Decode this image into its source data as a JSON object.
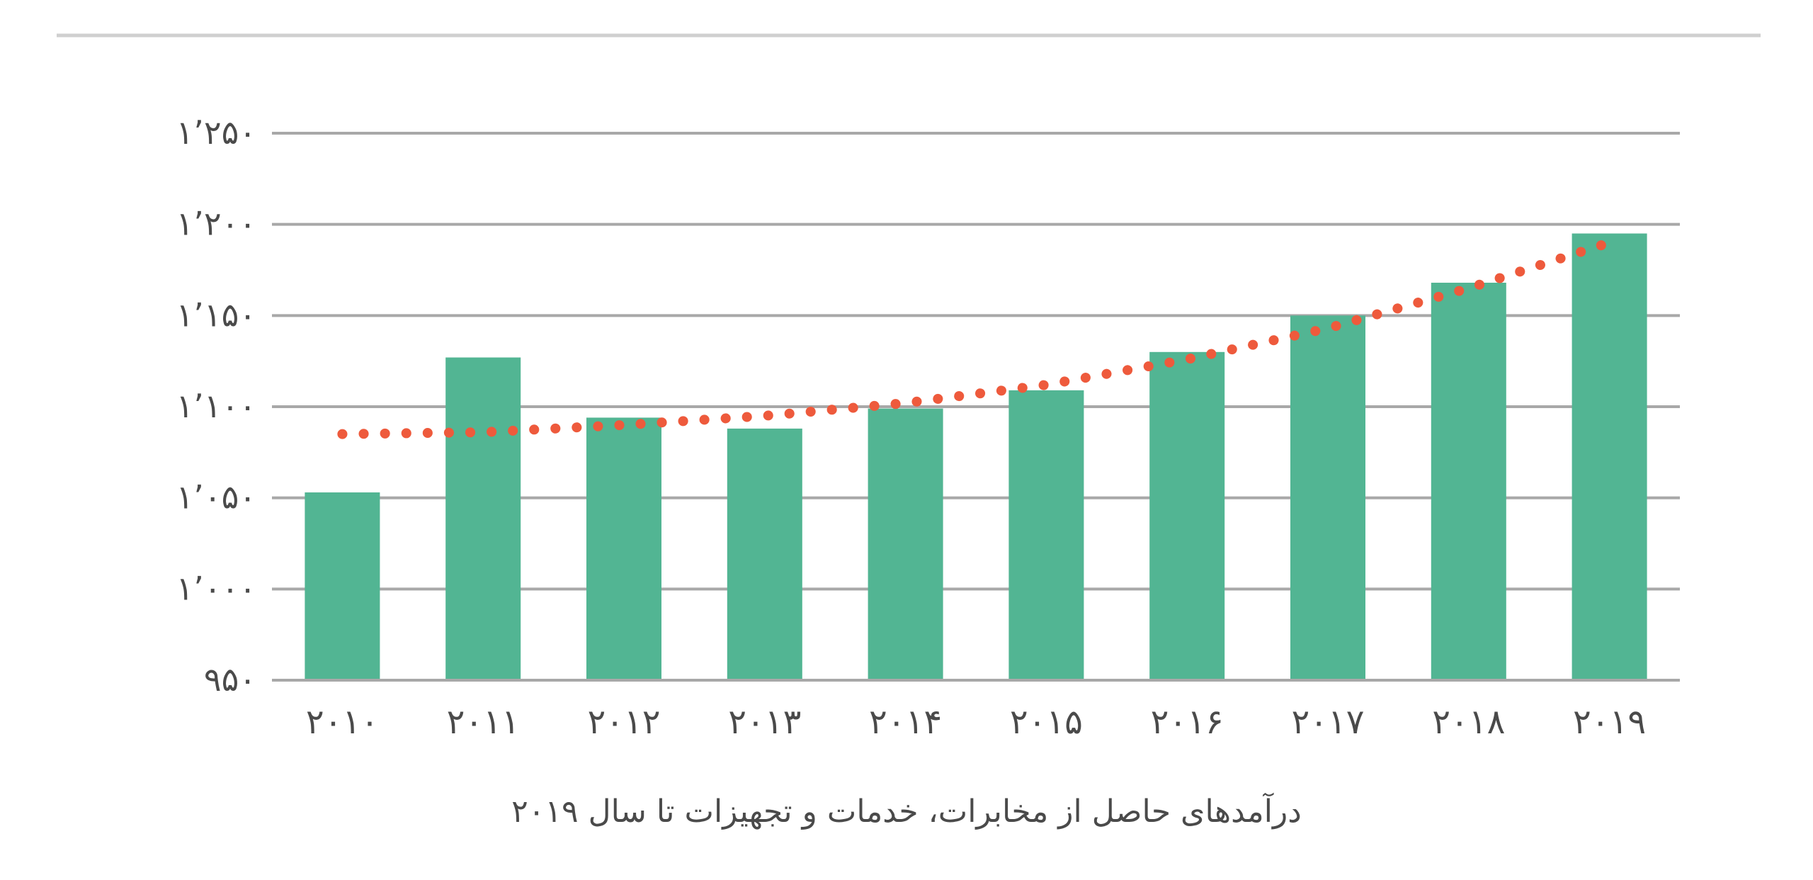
{
  "chart_data": {
    "type": "bar",
    "categories": [
      "۲۰۱۰",
      "۲۰۱۱",
      "۲۰۱۲",
      "۲۰۱۳",
      "۲۰۱۴",
      "۲۰۱۵",
      "۲۰۱۶",
      "۲۰۱۷",
      "۲۰۱۸",
      "۲۰۱۹"
    ],
    "series": [
      {
        "values": [
          1053,
          1127,
          1094,
          1088,
          1099,
          1109,
          1130,
          1150,
          1168,
          1195
        ]
      }
    ],
    "trendline": {
      "style": "dotted",
      "values": [
        1085,
        1086,
        1090,
        1095,
        1102,
        1112,
        1126,
        1143,
        1165,
        1190
      ]
    },
    "title": "درآمدهای حاصل از مخابرات، خدمات و تجهیزات تا سال ۲۰۱۹",
    "xlabel": "",
    "ylabel": "",
    "ylim": [
      950,
      1250
    ],
    "yticks": [
      950,
      1000,
      1050,
      1100,
      1150,
      1200,
      1250
    ],
    "ytick_labels": [
      "۹۵۰",
      "۱٬۰۰۰",
      "۱٬۰۵۰",
      "۱٬۱۰۰",
      "۱٬۱۵۰",
      "۱٬۲۰۰",
      "۱٬۲۵۰"
    ],
    "grid": true,
    "legend": "none",
    "colors": {
      "bar": "#52b593",
      "trend": "#ee5a3c",
      "grid": "#a8a8a8",
      "text": "#4a4a4a",
      "top_rule": "#cfcfcf"
    }
  }
}
